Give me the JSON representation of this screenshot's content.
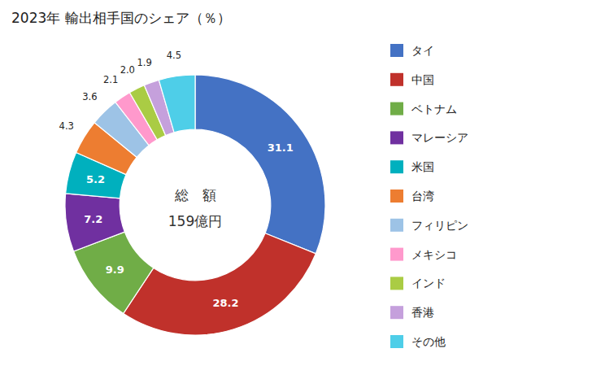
{
  "chart_data": {
    "type": "donut",
    "title": "2023年 輸出相手国のシェア（％）",
    "annotations": [
      "総　額",
      "159億円"
    ],
    "categories": [
      "タイ",
      "中国",
      "ベトナム",
      "マレーシア",
      "米国",
      "台湾",
      "フィリピン",
      "メキシコ",
      "インド",
      "香港",
      "その他"
    ],
    "values": [
      31.1,
      28.2,
      9.9,
      7.2,
      5.2,
      4.3,
      3.6,
      2.1,
      2.0,
      1.9,
      4.5
    ],
    "value_labels": [
      "31.1",
      "28.2",
      "9.9",
      "7.2",
      "5.2",
      "4.3",
      "3.6",
      "2.1",
      "2.0",
      "1.9",
      "4.5"
    ],
    "colors": [
      "#4472C4",
      "#C0312B",
      "#70AD47",
      "#7030A0",
      "#00B0BE",
      "#ED7D31",
      "#9DC3E6",
      "#FF99CC",
      "#AACC44",
      "#C5A0DC",
      "#4ECEE8"
    ],
    "data_labels": true,
    "legend": "right"
  }
}
